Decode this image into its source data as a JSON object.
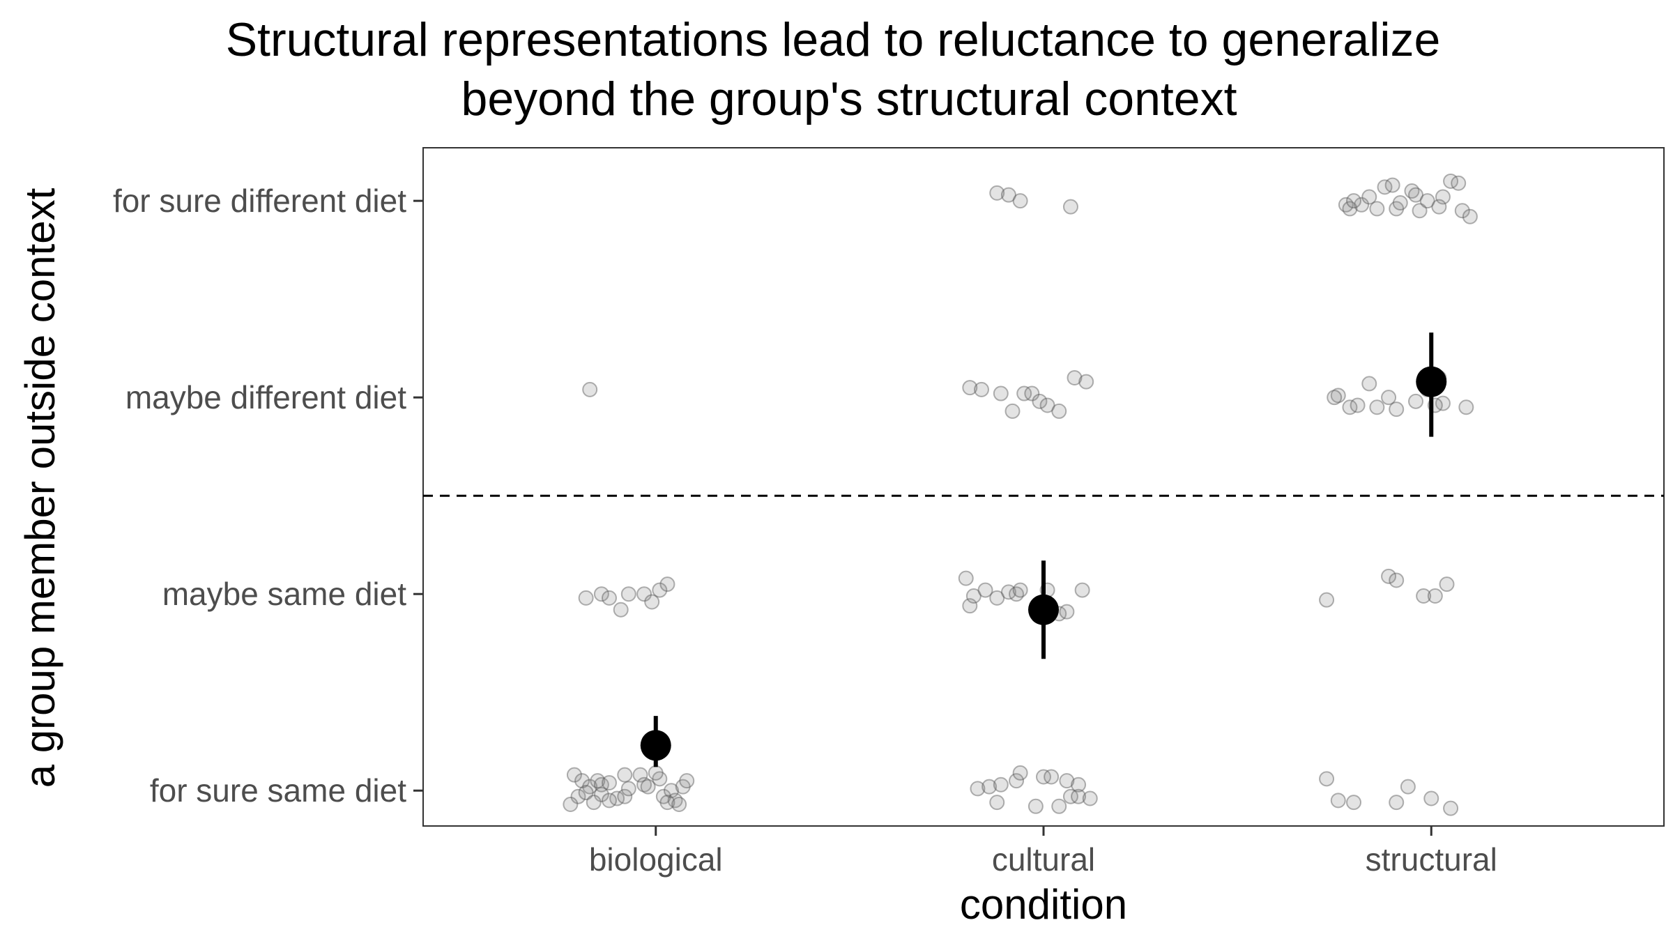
{
  "chart_data": {
    "type": "scatter",
    "title": "Structural representations lead to reluctance to generalize beyond the group's structural context",
    "title_lines": [
      "Structural representations lead to reluctance to generalize",
      "beyond the group's structural context"
    ],
    "xlabel": "condition",
    "ylabel": "a group member outside context",
    "categories": [
      "biological",
      "cultural",
      "structural"
    ],
    "y_levels": [
      "for sure same diet",
      "maybe same diet",
      "maybe different diet",
      "for sure different diet"
    ],
    "ylim": [
      0.82,
      4.27
    ],
    "reference_line": {
      "y": 2.5,
      "style": "dashed"
    },
    "grid": false,
    "legend": "none",
    "colors": {
      "jitter_point": "#808080",
      "summary": "#000000"
    },
    "summary": [
      {
        "condition": "biological",
        "mean": 1.23,
        "ci": [
          1.12,
          1.38
        ]
      },
      {
        "condition": "cultural",
        "mean": 1.92,
        "ci": [
          1.67,
          2.17
        ]
      },
      {
        "condition": "structural",
        "mean": 3.08,
        "ci": [
          2.8,
          3.33
        ]
      }
    ],
    "series": [
      {
        "condition": "biological",
        "points": [
          [
            0.83,
            3.04
          ],
          [
            0.82,
            1.98
          ],
          [
            0.86,
            2.0
          ],
          [
            0.88,
            1.98
          ],
          [
            0.91,
            1.92
          ],
          [
            0.93,
            2.0
          ],
          [
            0.97,
            2.0
          ],
          [
            0.99,
            1.96
          ],
          [
            1.01,
            2.02
          ],
          [
            1.03,
            2.05
          ],
          [
            0.79,
            1.08
          ],
          [
            0.8,
            0.97
          ],
          [
            0.81,
            1.05
          ],
          [
            0.83,
            1.02
          ],
          [
            0.85,
            1.05
          ],
          [
            0.86,
            1.03
          ],
          [
            0.86,
            0.98
          ],
          [
            0.88,
            1.04
          ],
          [
            0.9,
            0.96
          ],
          [
            0.92,
            0.97
          ],
          [
            0.93,
            1.01
          ],
          [
            0.96,
            1.08
          ],
          [
            0.97,
            1.03
          ],
          [
            1.01,
            1.06
          ],
          [
            1.02,
            0.97
          ],
          [
            1.04,
            1.0
          ],
          [
            1.05,
            0.95
          ],
          [
            1.07,
            1.02
          ],
          [
            1.08,
            1.05
          ],
          [
            0.78,
            0.93
          ],
          [
            0.82,
            0.99
          ],
          [
            0.88,
            0.95
          ],
          [
            0.92,
            1.08
          ],
          [
            1.0,
            1.09
          ],
          [
            1.03,
            0.94
          ],
          [
            0.98,
            1.02
          ],
          [
            1.06,
            0.93
          ],
          [
            0.84,
            0.94
          ]
        ]
      },
      {
        "condition": "cultural",
        "points": [
          [
            1.88,
            4.04
          ],
          [
            1.91,
            4.03
          ],
          [
            1.94,
            4.0
          ],
          [
            2.07,
            3.97
          ],
          [
            1.81,
            3.05
          ],
          [
            1.84,
            3.04
          ],
          [
            1.89,
            3.02
          ],
          [
            1.92,
            2.93
          ],
          [
            1.95,
            3.02
          ],
          [
            1.97,
            3.02
          ],
          [
            1.99,
            2.98
          ],
          [
            2.01,
            2.96
          ],
          [
            2.04,
            2.93
          ],
          [
            2.08,
            3.1
          ],
          [
            2.11,
            3.08
          ],
          [
            1.8,
            2.08
          ],
          [
            1.81,
            1.94
          ],
          [
            1.82,
            1.99
          ],
          [
            1.85,
            2.02
          ],
          [
            1.88,
            1.98
          ],
          [
            1.91,
            2.01
          ],
          [
            1.93,
            2.0
          ],
          [
            1.94,
            2.02
          ],
          [
            2.01,
            2.02
          ],
          [
            2.04,
            1.9
          ],
          [
            2.06,
            1.91
          ],
          [
            2.1,
            2.02
          ],
          [
            1.83,
            1.01
          ],
          [
            1.86,
            1.02
          ],
          [
            1.88,
            0.94
          ],
          [
            1.89,
            1.03
          ],
          [
            1.93,
            1.05
          ],
          [
            1.94,
            1.09
          ],
          [
            1.98,
            0.92
          ],
          [
            2.0,
            1.07
          ],
          [
            2.02,
            1.07
          ],
          [
            2.04,
            0.92
          ],
          [
            2.06,
            1.05
          ],
          [
            2.07,
            0.97
          ],
          [
            2.09,
            0.97
          ],
          [
            2.12,
            0.96
          ],
          [
            2.09,
            1.03
          ]
        ]
      },
      {
        "condition": "structural",
        "points": [
          [
            2.78,
            3.98
          ],
          [
            2.79,
            3.96
          ],
          [
            2.82,
            3.98
          ],
          [
            2.84,
            4.02
          ],
          [
            2.86,
            3.96
          ],
          [
            2.88,
            4.07
          ],
          [
            2.9,
            4.08
          ],
          [
            2.91,
            3.96
          ],
          [
            2.95,
            4.05
          ],
          [
            2.96,
            4.03
          ],
          [
            2.97,
            3.95
          ],
          [
            2.99,
            4.0
          ],
          [
            3.03,
            4.02
          ],
          [
            3.05,
            4.1
          ],
          [
            3.07,
            4.09
          ],
          [
            2.92,
            3.99
          ],
          [
            2.8,
            4.0
          ],
          [
            3.02,
            3.97
          ],
          [
            3.08,
            3.95
          ],
          [
            3.1,
            3.92
          ],
          [
            2.76,
            3.01
          ],
          [
            2.79,
            2.95
          ],
          [
            2.81,
            2.96
          ],
          [
            2.84,
            3.07
          ],
          [
            2.86,
            2.95
          ],
          [
            2.89,
            3.0
          ],
          [
            2.91,
            2.94
          ],
          [
            2.96,
            2.98
          ],
          [
            2.99,
            3.04
          ],
          [
            3.02,
            3.1
          ],
          [
            3.03,
            2.97
          ],
          [
            3.09,
            2.95
          ],
          [
            3.01,
            2.96
          ],
          [
            2.75,
            3.0
          ],
          [
            2.73,
            1.97
          ],
          [
            2.89,
            2.09
          ],
          [
            2.91,
            2.07
          ],
          [
            2.98,
            1.99
          ],
          [
            3.01,
            1.99
          ],
          [
            3.04,
            2.05
          ],
          [
            2.73,
            1.06
          ],
          [
            2.76,
            0.95
          ],
          [
            2.8,
            0.94
          ],
          [
            2.91,
            0.94
          ],
          [
            2.94,
            1.02
          ],
          [
            3.0,
            0.96
          ],
          [
            3.05,
            0.91
          ]
        ]
      }
    ]
  }
}
